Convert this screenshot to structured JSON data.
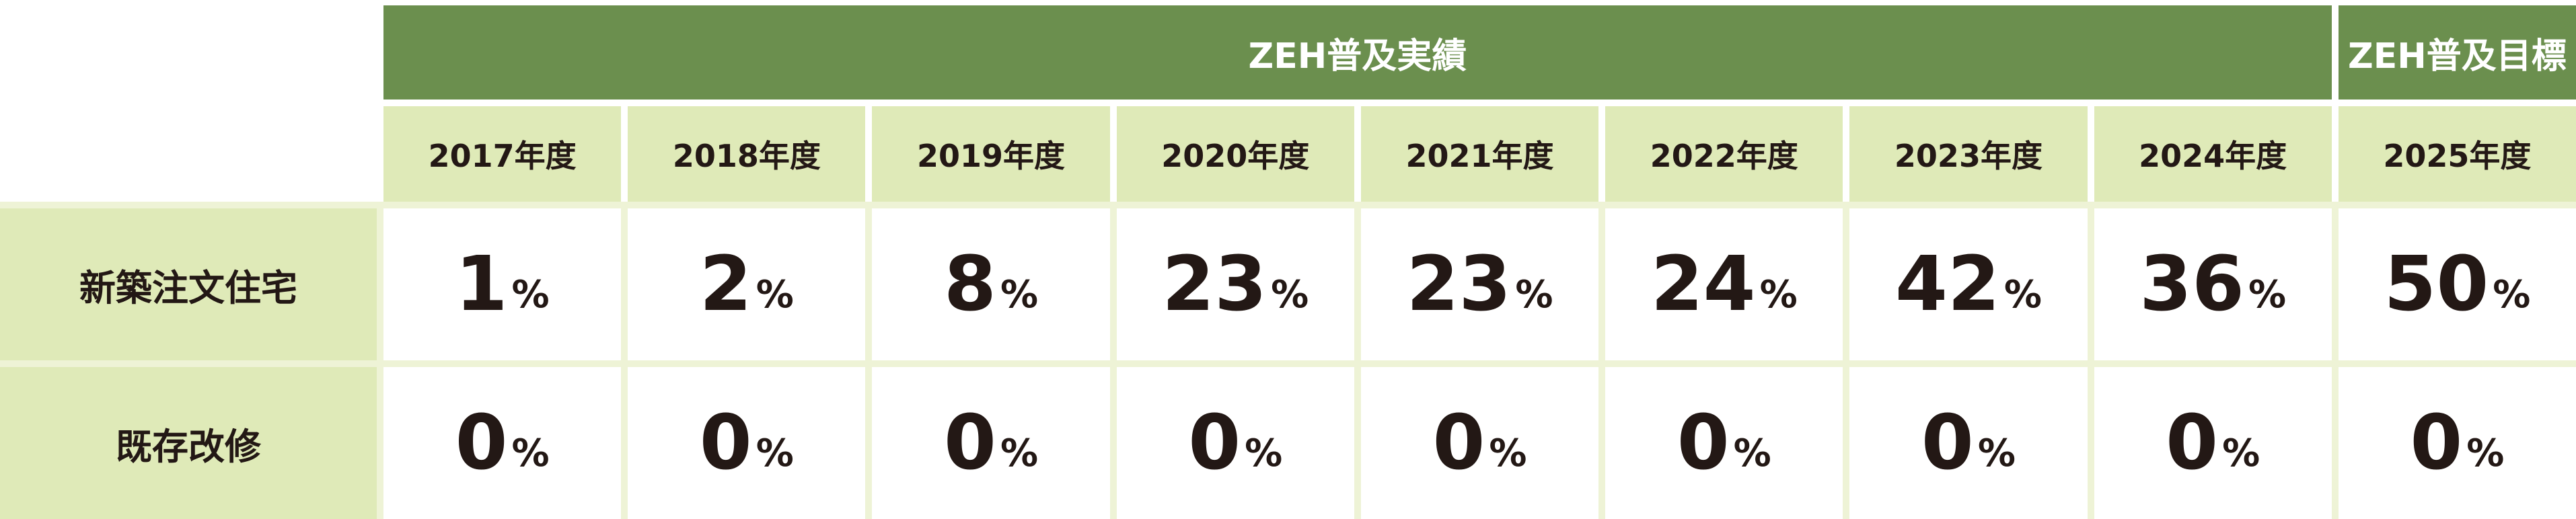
{
  "table": {
    "group_headers": [
      "ZEH普及実績",
      "ZEH普及目標"
    ],
    "years": [
      "2017年度",
      "2018年度",
      "2019年度",
      "2020年度",
      "2021年度",
      "2022年度",
      "2023年度",
      "2024年度",
      "2025年度"
    ],
    "unit": "%",
    "rows": [
      {
        "label": "新築注文住宅",
        "values": [
          1,
          2,
          8,
          23,
          23,
          24,
          42,
          36,
          50
        ]
      },
      {
        "label": "既存改修",
        "values": [
          0,
          0,
          0,
          0,
          0,
          0,
          0,
          0,
          0
        ]
      }
    ]
  }
}
